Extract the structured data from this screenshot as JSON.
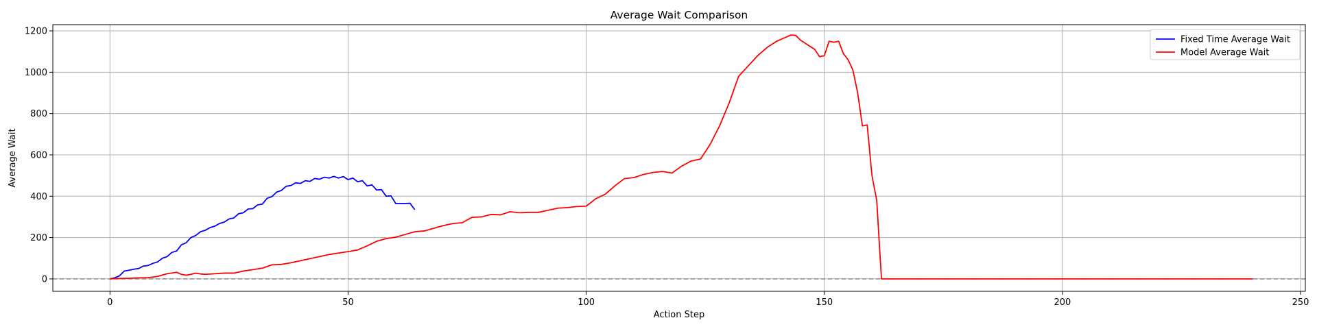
{
  "chart_data": {
    "type": "line",
    "title": "Average Wait Comparison",
    "xlabel": "Action Step",
    "ylabel": "Average Wait",
    "xlim": [
      -12,
      251
    ],
    "ylim": [
      -60,
      1230
    ],
    "xticks": [
      0,
      50,
      100,
      150,
      200,
      250
    ],
    "yticks": [
      0,
      200,
      400,
      600,
      800,
      1000,
      1200
    ],
    "grid": true,
    "legend_position": "top-right",
    "reference_line": {
      "y": 0,
      "style": "dashed",
      "color": "#808080"
    },
    "series": [
      {
        "name": "Fixed Time Average Wait",
        "color": "#0000ff",
        "x": [
          0,
          1,
          2,
          3,
          4,
          5,
          6,
          7,
          8,
          9,
          10,
          11,
          12,
          13,
          14,
          15,
          16,
          17,
          18,
          19,
          20,
          21,
          22,
          23,
          24,
          25,
          26,
          27,
          28,
          29,
          30,
          31,
          32,
          33,
          34,
          35,
          36,
          37,
          38,
          39,
          40,
          41,
          42,
          43,
          44,
          45,
          46,
          47,
          48,
          49,
          50,
          51,
          52,
          53,
          54,
          55,
          56,
          57,
          58,
          59,
          60,
          61,
          62,
          63,
          64
        ],
        "y": [
          0,
          5,
          15,
          38,
          42,
          47,
          50,
          62,
          65,
          75,
          82,
          100,
          108,
          128,
          135,
          165,
          175,
          200,
          210,
          228,
          235,
          248,
          255,
          268,
          275,
          290,
          295,
          315,
          320,
          338,
          340,
          358,
          362,
          390,
          398,
          420,
          428,
          448,
          452,
          465,
          462,
          475,
          472,
          486,
          482,
          492,
          488,
          496,
          488,
          495,
          480,
          488,
          470,
          475,
          450,
          455,
          430,
          432,
          400,
          402,
          365,
          365,
          365,
          366,
          335
        ]
      },
      {
        "name": "Model Average Wait",
        "color": "#ff0000",
        "x": [
          0,
          2,
          4,
          6,
          8,
          10,
          12,
          14,
          15,
          16,
          17,
          18,
          19,
          20,
          22,
          24,
          26,
          28,
          30,
          32,
          34,
          36,
          38,
          40,
          42,
          44,
          46,
          48,
          50,
          52,
          54,
          56,
          58,
          60,
          62,
          64,
          66,
          68,
          70,
          72,
          74,
          76,
          78,
          80,
          82,
          84,
          86,
          88,
          90,
          92,
          94,
          96,
          98,
          100,
          102,
          104,
          106,
          108,
          110,
          112,
          114,
          116,
          118,
          120,
          122,
          124,
          126,
          128,
          130,
          132,
          134,
          136,
          138,
          140,
          142,
          143,
          144,
          145,
          146,
          148,
          149,
          150,
          151,
          152,
          153,
          154,
          155,
          156,
          157,
          158,
          159,
          160,
          161,
          162,
          163,
          165,
          240
        ],
        "y": [
          0,
          2,
          3,
          5,
          6,
          12,
          25,
          32,
          22,
          18,
          22,
          28,
          24,
          22,
          25,
          28,
          28,
          38,
          45,
          52,
          68,
          70,
          78,
          88,
          98,
          108,
          118,
          125,
          132,
          140,
          160,
          182,
          195,
          202,
          215,
          228,
          232,
          245,
          258,
          268,
          272,
          298,
          300,
          312,
          310,
          325,
          320,
          322,
          322,
          332,
          342,
          345,
          350,
          352,
          388,
          410,
          450,
          485,
          490,
          505,
          515,
          520,
          512,
          545,
          570,
          580,
          650,
          740,
          850,
          980,
          1030,
          1080,
          1120,
          1150,
          1170,
          1180,
          1178,
          1155,
          1140,
          1110,
          1075,
          1080,
          1150,
          1145,
          1150,
          1090,
          1060,
          1010,
          900,
          740,
          745,
          500,
          380,
          0,
          0,
          0,
          0
        ]
      }
    ]
  }
}
